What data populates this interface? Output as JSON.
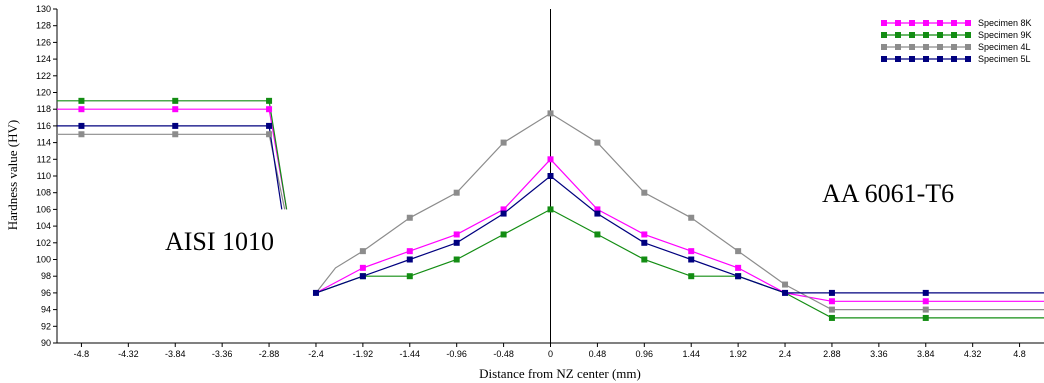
{
  "chart_data": {
    "type": "line",
    "xlabel": "Distance from NZ center (mm)",
    "ylabel": "Hardness value (HV)",
    "ylim": [
      90,
      130
    ],
    "xlim": [
      -5.05,
      5.05
    ],
    "yticks": [
      90,
      92,
      94,
      96,
      98,
      100,
      102,
      104,
      106,
      108,
      110,
      112,
      114,
      116,
      118,
      120,
      122,
      124,
      126,
      128,
      130
    ],
    "xticks": [
      "-4.8",
      "-4.32",
      "-3.84",
      "-3.36",
      "-2.88",
      "-2.4",
      "-1.92",
      "-1.44",
      "-0.96",
      "-0.48",
      "0",
      "0.48",
      "0.96",
      "1.44",
      "1.92",
      "2.4",
      "2.88",
      "3.36",
      "3.84",
      "4.32",
      "4.8"
    ],
    "grid": false,
    "center_line_x": 0,
    "legend_position": "top-right",
    "annotations": [
      {
        "text": "AISI 1010",
        "at": [
          -3.6,
          101.5
        ]
      },
      {
        "text": "AA 6061-T6",
        "at": [
          3.6,
          107
        ]
      }
    ],
    "series": [
      {
        "name": "Specimen  8K",
        "color": "#ff00ff",
        "segments": [
          [
            [
              -5.05,
              118
            ],
            [
              -4.8,
              118
            ],
            [
              -3.84,
              118
            ],
            [
              -2.88,
              118
            ],
            [
              -2.7,
              106
            ]
          ],
          [
            [
              -2.4,
              96
            ],
            [
              -1.92,
              99
            ],
            [
              -1.44,
              101
            ],
            [
              -0.96,
              103
            ],
            [
              -0.48,
              106
            ],
            [
              0,
              112
            ],
            [
              0.48,
              106
            ],
            [
              0.96,
              103
            ],
            [
              1.44,
              101
            ],
            [
              1.92,
              99
            ],
            [
              2.4,
              96
            ],
            [
              2.88,
              95
            ],
            [
              3.36,
              95
            ],
            [
              3.84,
              95
            ],
            [
              4.32,
              95
            ],
            [
              5.05,
              95
            ]
          ]
        ]
      },
      {
        "name": "Specimen  9K",
        "color": "#138d13",
        "segments": [
          [
            [
              -5.05,
              119
            ],
            [
              -4.8,
              119
            ],
            [
              -3.84,
              119
            ],
            [
              -2.88,
              119
            ],
            [
              -2.7,
              106
            ]
          ],
          [
            [
              -2.4,
              96
            ],
            [
              -1.92,
              98
            ],
            [
              -1.44,
              98
            ],
            [
              -0.96,
              100
            ],
            [
              -0.48,
              103
            ],
            [
              0,
              106
            ],
            [
              0.48,
              103
            ],
            [
              0.96,
              100
            ],
            [
              1.44,
              98
            ],
            [
              1.92,
              98
            ],
            [
              2.4,
              96
            ],
            [
              2.88,
              93
            ],
            [
              3.36,
              93
            ],
            [
              3.84,
              93
            ],
            [
              4.32,
              93
            ],
            [
              5.05,
              93
            ]
          ]
        ]
      },
      {
        "name": "Specimen  4L",
        "color": "#8c8c8c",
        "segments": [
          [
            [
              -5.05,
              115
            ],
            [
              -4.8,
              115
            ],
            [
              -3.84,
              115
            ],
            [
              -2.88,
              115
            ],
            [
              -2.72,
              106
            ]
          ],
          [
            [
              -2.4,
              96
            ],
            [
              -2.2,
              99
            ],
            [
              -1.92,
              101
            ],
            [
              -1.44,
              105
            ],
            [
              -0.96,
              108
            ],
            [
              -0.48,
              114
            ],
            [
              0,
              117.5
            ],
            [
              0.48,
              114
            ],
            [
              0.96,
              108
            ],
            [
              1.44,
              105
            ],
            [
              1.92,
              101
            ],
            [
              2.4,
              97
            ],
            [
              2.88,
              94
            ],
            [
              3.36,
              94
            ],
            [
              3.84,
              94
            ],
            [
              4.32,
              94
            ],
            [
              5.05,
              94
            ]
          ]
        ]
      },
      {
        "name": "Specimen  5L",
        "color": "#00007f",
        "segments": [
          [
            [
              -5.05,
              116
            ],
            [
              -4.8,
              116
            ],
            [
              -3.84,
              116
            ],
            [
              -2.88,
              116
            ],
            [
              -2.75,
              106
            ]
          ],
          [
            [
              -2.4,
              96
            ],
            [
              -1.92,
              98
            ],
            [
              -1.44,
              100
            ],
            [
              -0.96,
              102
            ],
            [
              -0.48,
              105.5
            ],
            [
              0,
              110
            ],
            [
              0.48,
              105.5
            ],
            [
              0.96,
              102
            ],
            [
              1.44,
              100
            ],
            [
              1.92,
              98
            ],
            [
              2.4,
              96
            ],
            [
              2.88,
              96
            ],
            [
              3.36,
              96
            ],
            [
              3.84,
              96
            ],
            [
              4.32,
              96
            ],
            [
              5.05,
              96
            ]
          ]
        ]
      }
    ],
    "markers": [
      {
        "series": 0,
        "x": [
          -4.8,
          -3.84,
          -2.88,
          -1.92,
          -1.44,
          -0.96,
          -0.48,
          0,
          0.48,
          0.96,
          1.44,
          1.92,
          2.88,
          3.84
        ]
      },
      {
        "series": 1,
        "x": [
          -4.8,
          -3.84,
          -2.88,
          -1.92,
          -1.44,
          -0.96,
          -0.48,
          0,
          0.48,
          0.96,
          1.44,
          1.92,
          2.88,
          3.84
        ]
      },
      {
        "series": 2,
        "x": [
          -4.8,
          -3.84,
          -2.88,
          -1.92,
          -1.44,
          -0.96,
          -0.48,
          0,
          0.48,
          0.96,
          1.44,
          1.92,
          2.4,
          2.88,
          3.84
        ]
      },
      {
        "series": 3,
        "x": [
          -4.8,
          -3.84,
          -2.88,
          -2.4,
          -1.92,
          -1.44,
          -0.96,
          -0.48,
          0,
          0.48,
          0.96,
          1.44,
          1.92,
          2.4,
          2.88,
          3.84
        ]
      }
    ]
  }
}
